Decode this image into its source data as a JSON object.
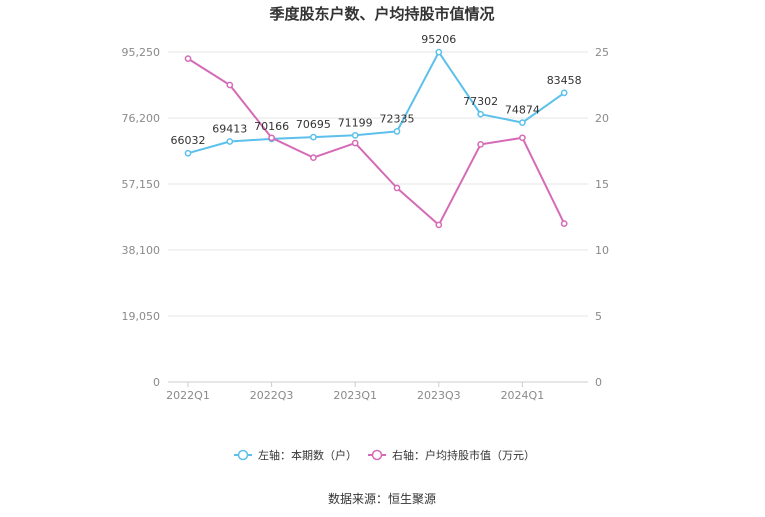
{
  "chart_data": {
    "type": "line",
    "title": "季度股东户数、户均持股市值情况",
    "categories": [
      "2022Q1",
      "2022Q2",
      "2022Q3",
      "2022Q4",
      "2023Q1",
      "2023Q2",
      "2023Q3",
      "2023Q4",
      "2024Q1",
      "2024Q2"
    ],
    "x_tick_labels": [
      "2022Q1",
      "2022Q3",
      "2023Q1",
      "2023Q3",
      "2024Q1"
    ],
    "series": [
      {
        "name": "左轴：本期数（户）",
        "axis": "left",
        "color": "#5bc0eb",
        "values": [
          66032,
          69413,
          70166,
          70695,
          71199,
          72335,
          95206,
          77302,
          74874,
          83458
        ],
        "data_labels": [
          "66032",
          "69413",
          "70166",
          "70695",
          "71199",
          "72335",
          "95206",
          "77302",
          "74874",
          "83458"
        ]
      },
      {
        "name": "右轴：户均持股市值（万元）",
        "axis": "right",
        "color": "#d56bb7",
        "values": [
          24.5,
          22.5,
          18.5,
          17.0,
          18.1,
          14.7,
          11.9,
          18.0,
          18.5,
          12.0
        ]
      }
    ],
    "left_axis": {
      "ylim": [
        0,
        95250
      ],
      "ticks": [
        0,
        19050,
        38100,
        57150,
        76200,
        95250
      ],
      "tick_labels": [
        "0",
        "19,050",
        "38,100",
        "57,150",
        "76,200",
        "95,250"
      ]
    },
    "right_axis": {
      "ylim": [
        0,
        25
      ],
      "ticks": [
        0,
        5,
        10,
        15,
        20,
        25
      ],
      "tick_labels": [
        "0",
        "5",
        "10",
        "15",
        "20",
        "25"
      ]
    },
    "grid": true,
    "legend_position": "bottom"
  },
  "source": "数据来源：恒生聚源"
}
